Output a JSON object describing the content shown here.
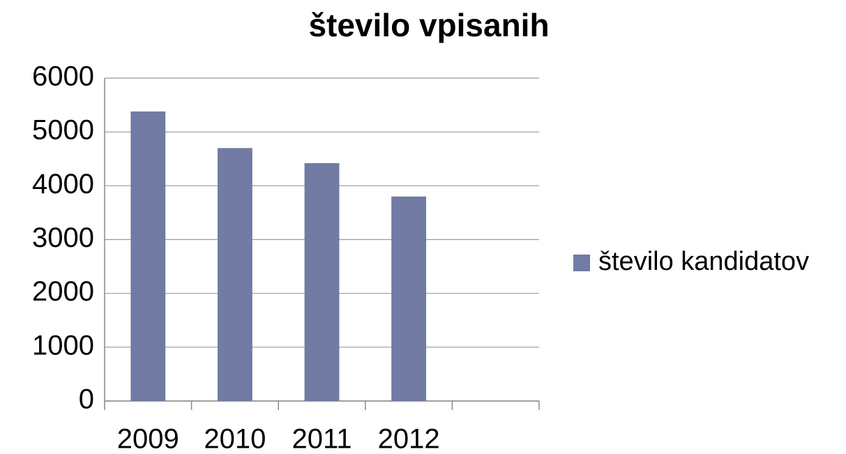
{
  "chart_data": {
    "type": "bar",
    "title": "število vpisanih",
    "categories": [
      "2009",
      "2010",
      "2011",
      "2012",
      null
    ],
    "series": [
      {
        "name": "število kandidatov",
        "color": "#717ba3",
        "values": [
          5380,
          4700,
          4420,
          3800,
          null
        ]
      }
    ],
    "ylim": [
      0,
      6000
    ],
    "yticks": [
      0,
      1000,
      2000,
      3000,
      4000,
      5000,
      6000
    ],
    "grid": true,
    "legend": "right"
  }
}
